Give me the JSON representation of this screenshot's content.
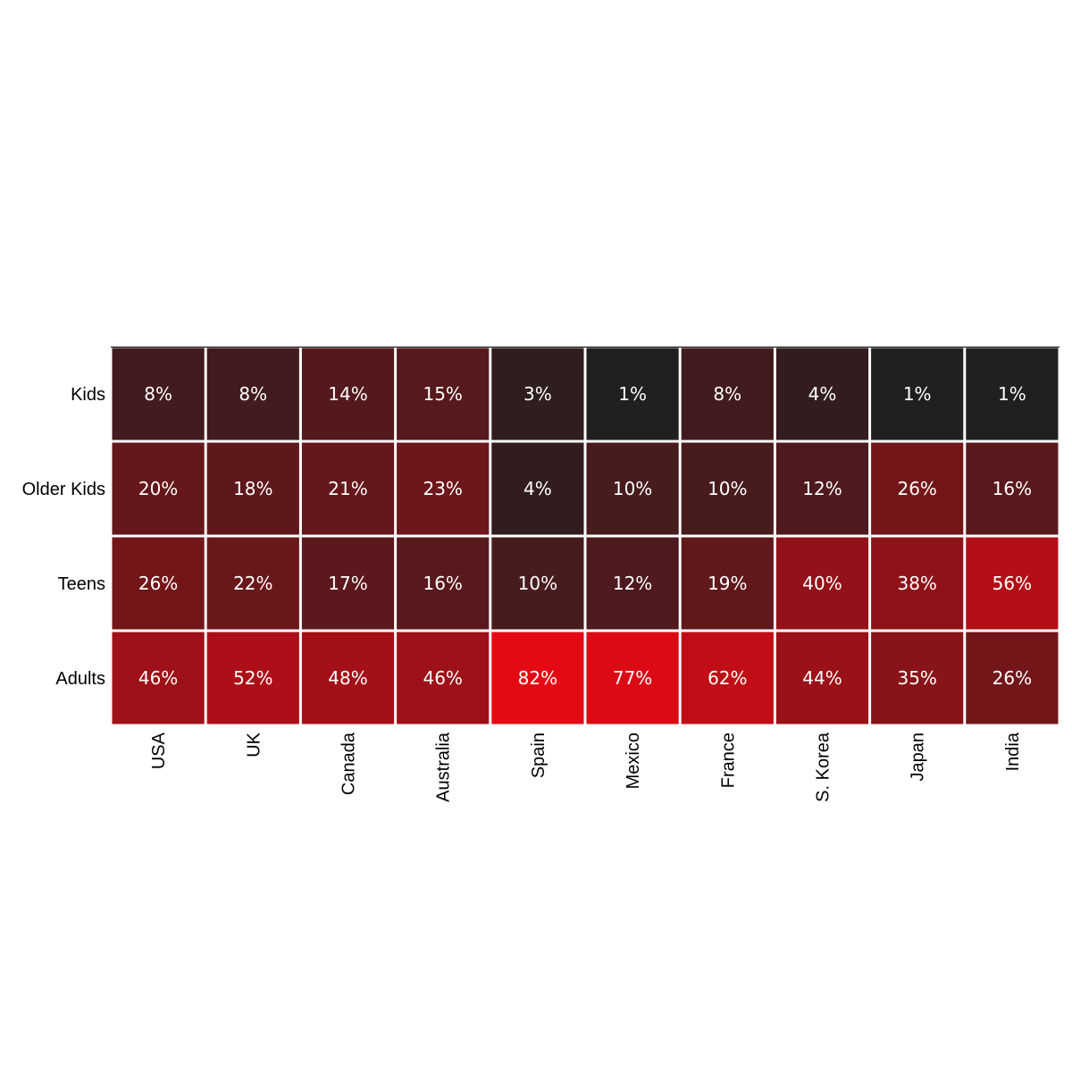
{
  "chart_data": {
    "type": "heatmap",
    "title": "",
    "xlabel": "",
    "ylabel": "",
    "x_categories": [
      "USA",
      "UK",
      "Canada",
      "Australia",
      "Spain",
      "Mexico",
      "France",
      "S. Korea",
      "Japan",
      "India"
    ],
    "y_categories": [
      "Kids",
      "Older Kids",
      "Teens",
      "Adults"
    ],
    "values": [
      [
        8,
        8,
        14,
        15,
        3,
        1,
        8,
        4,
        1,
        1
      ],
      [
        20,
        18,
        21,
        23,
        4,
        10,
        10,
        12,
        26,
        16
      ],
      [
        26,
        22,
        17,
        16,
        10,
        12,
        19,
        40,
        38,
        56
      ],
      [
        46,
        52,
        48,
        46,
        82,
        77,
        62,
        44,
        35,
        26
      ]
    ],
    "value_suffix": "%",
    "colormap": {
      "low_color": "#221f1f",
      "high_color": "#e50914"
    },
    "cell_text_color": "#ffffff",
    "grid": false,
    "legend": "none"
  }
}
